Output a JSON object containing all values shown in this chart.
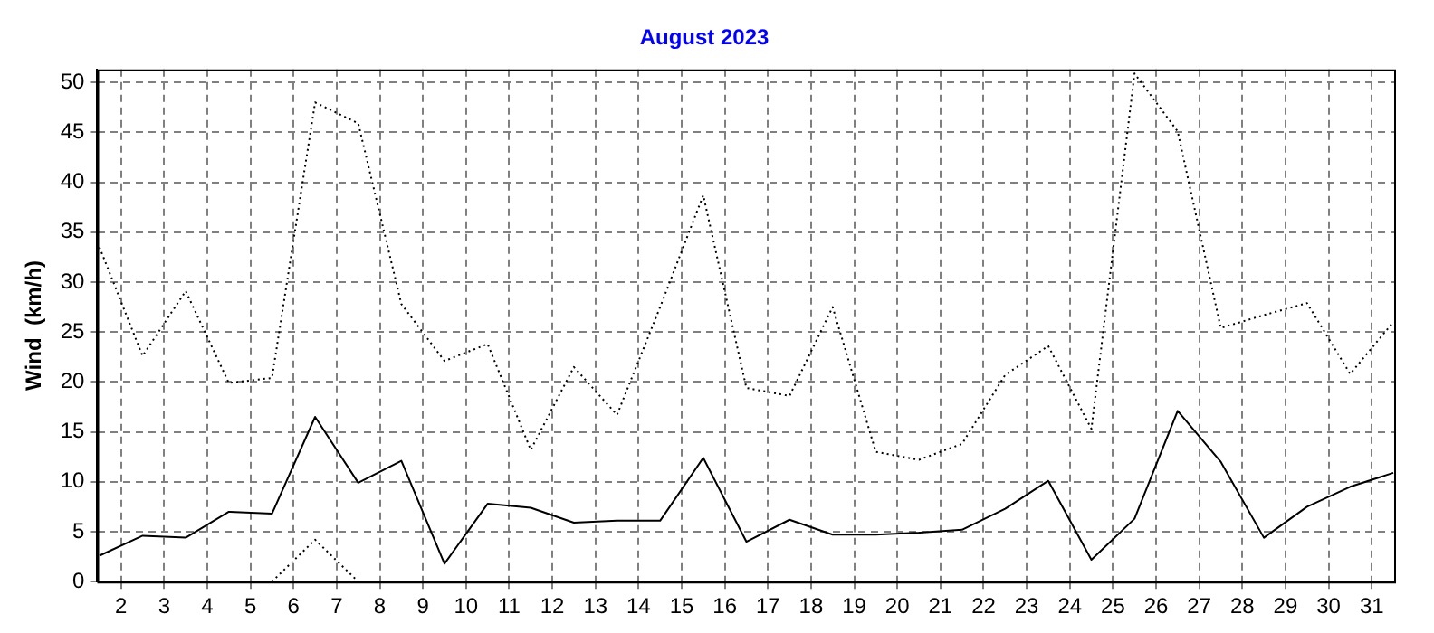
{
  "chart_data": {
    "type": "line",
    "title": "August 2023",
    "ylabel": "Wind  (km/h)",
    "x": [
      1.5,
      2.5,
      3.5,
      4.5,
      5.5,
      6.5,
      7.5,
      8.5,
      9.5,
      10.5,
      11.5,
      12.5,
      13.5,
      14.5,
      15.5,
      16.5,
      17.5,
      18.5,
      19.5,
      20.5,
      21.5,
      22.5,
      23.5,
      24.5,
      25.5,
      26.5,
      27.5,
      28.5,
      29.5,
      30.5,
      31.5
    ],
    "series": [
      {
        "color": "#000000",
        "line_style": "dotted",
        "values": [
          33.5,
          22.6,
          29.1,
          19.9,
          20.4,
          48.0,
          45.9,
          27.8,
          22.1,
          23.8,
          13.2,
          21.5,
          16.7,
          27.5,
          38.7,
          19.4,
          18.6,
          27.5,
          13.0,
          12.2,
          13.8,
          20.7,
          23.6,
          15.3,
          50.9,
          45.1,
          25.4,
          26.7,
          27.9,
          20.8,
          26.0
        ]
      },
      {
        "color": "#000000",
        "line_style": "solid",
        "values": [
          2.6,
          4.6,
          4.4,
          7.0,
          6.8,
          16.5,
          9.9,
          12.1,
          1.8,
          7.8,
          7.4,
          5.9,
          6.1,
          6.1,
          12.4,
          4.0,
          6.2,
          4.7,
          4.7,
          4.9,
          5.2,
          7.3,
          10.1,
          2.2,
          6.3,
          17.1,
          12.0,
          4.4,
          7.5,
          9.5,
          10.9
        ]
      },
      {
        "color": "#000000",
        "line_style": "dotted",
        "values": [
          null,
          null,
          null,
          null,
          0,
          4.2,
          0,
          null,
          null,
          null,
          null,
          null,
          null,
          null,
          null,
          null,
          null,
          null,
          null,
          null,
          null,
          null,
          null,
          null,
          null,
          null,
          null,
          null,
          null,
          null,
          null
        ]
      }
    ],
    "xlim": [
      1.45,
      31.52
    ],
    "xticks": [
      2,
      3,
      4,
      5,
      6,
      7,
      8,
      9,
      10,
      11,
      12,
      13,
      14,
      15,
      16,
      17,
      18,
      19,
      20,
      21,
      22,
      23,
      24,
      25,
      26,
      27,
      28,
      29,
      30,
      31
    ],
    "ylim": [
      0,
      51.3
    ],
    "yticks": [
      0,
      5,
      10,
      15,
      20,
      25,
      30,
      35,
      40,
      45,
      50
    ],
    "grid": true,
    "legend": false,
    "marker": "none"
  }
}
